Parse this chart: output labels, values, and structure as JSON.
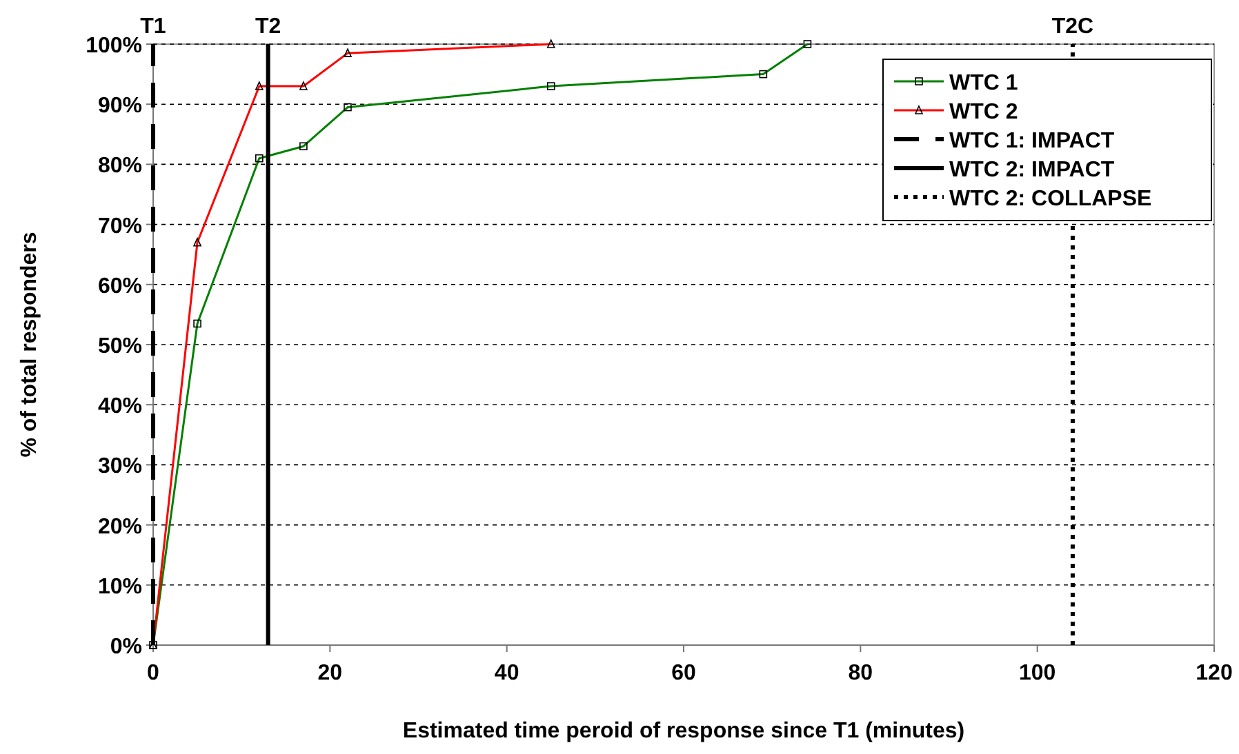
{
  "chart_data": {
    "type": "line",
    "xlabel": "Estimated time peroid of response since T1 (minutes)",
    "ylabel": "% of total responders",
    "xlim": [
      0,
      120
    ],
    "xticks": [
      0,
      20,
      40,
      60,
      80,
      100,
      120
    ],
    "ylim": [
      0,
      100
    ],
    "yticks": [
      {
        "value": 0,
        "label": "0%"
      },
      {
        "value": 10,
        "label": "10%"
      },
      {
        "value": 20,
        "label": "20%"
      },
      {
        "value": 30,
        "label": "30%"
      },
      {
        "value": 40,
        "label": "40%"
      },
      {
        "value": 50,
        "label": "50%"
      },
      {
        "value": 60,
        "label": "60%"
      },
      {
        "value": 70,
        "label": "70%"
      },
      {
        "value": 80,
        "label": "80%"
      },
      {
        "value": 90,
        "label": "90%"
      },
      {
        "value": 100,
        "label": "100%"
      }
    ],
    "grid": "y",
    "legend": "top right",
    "series": [
      {
        "name": "WTC 1",
        "color": "#008000",
        "marker": "square",
        "line_style": "solid",
        "x": [
          0,
          5,
          12,
          17,
          22,
          45,
          69,
          74
        ],
        "values": [
          0,
          53.5,
          81,
          83,
          89.5,
          93,
          95,
          100
        ]
      },
      {
        "name": "WTC 2",
        "color": "#ff0000",
        "marker": "triangle",
        "line_style": "solid",
        "x": [
          0,
          5,
          12,
          17,
          22,
          45
        ],
        "values": [
          0,
          67,
          93,
          93,
          98.5,
          100
        ]
      }
    ],
    "ref_lines": [
      {
        "axis": "x",
        "value": 0,
        "label": "T1",
        "color": "#000000",
        "line_style": "dashed"
      },
      {
        "axis": "x",
        "value": 13,
        "label": "T2",
        "color": "#000000",
        "line_style": "solid"
      },
      {
        "axis": "x",
        "value": 104,
        "label": "T2C",
        "color": "#000000",
        "line_style": "dotted"
      }
    ],
    "annotations": [
      "WTC 1: IMPACT",
      "WTC 2: IMPACT",
      "WTC 2: COLLAPSE"
    ]
  }
}
